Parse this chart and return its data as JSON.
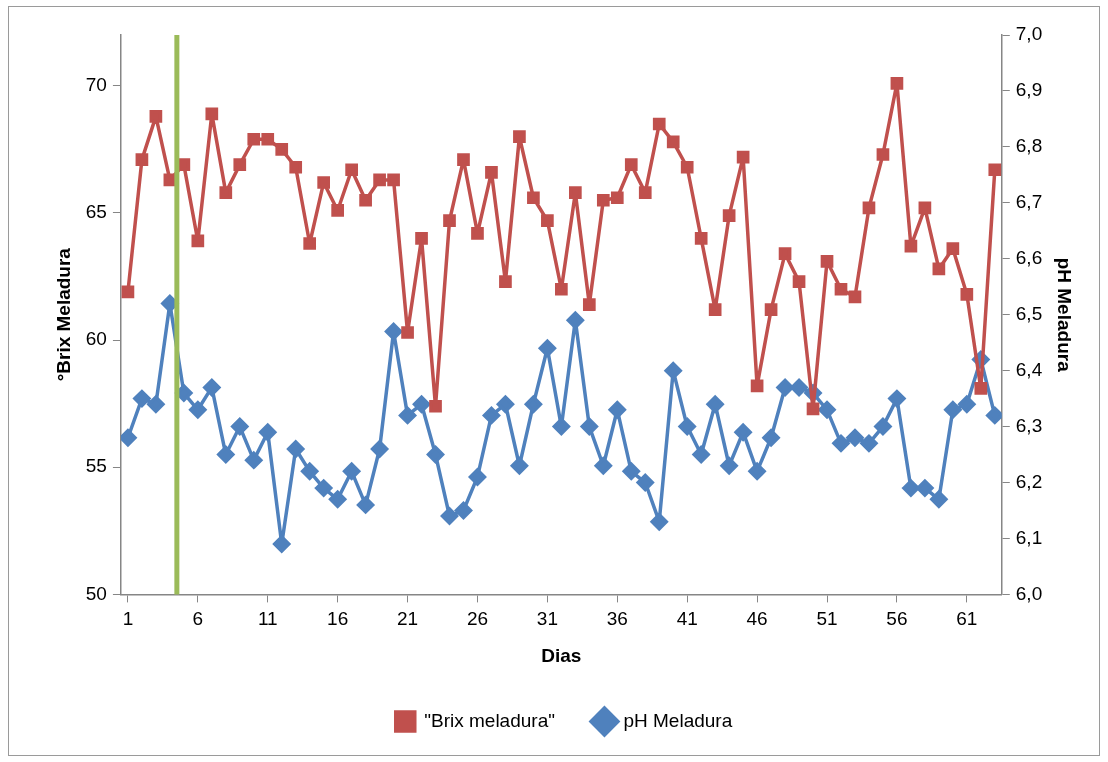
{
  "chart_data": {
    "type": "line",
    "xlabel": "Dias",
    "ylabel": "°Brix Meladura",
    "y2label": "pH Meladura",
    "x": [
      1,
      2,
      3,
      4,
      5,
      6,
      7,
      8,
      9,
      10,
      11,
      12,
      13,
      14,
      15,
      16,
      17,
      18,
      19,
      20,
      21,
      22,
      23,
      24,
      25,
      26,
      27,
      28,
      29,
      30,
      31,
      32,
      33,
      34,
      35,
      36,
      37,
      38,
      39,
      40,
      41,
      42,
      43,
      44,
      45,
      46,
      47,
      48,
      49,
      50,
      51,
      52,
      53,
      54,
      55,
      56,
      57,
      58,
      59,
      60,
      61,
      62,
      63
    ],
    "xlim": [
      0.5,
      63.5
    ],
    "xticks": [
      1,
      6,
      11,
      16,
      21,
      26,
      31,
      36,
      41,
      46,
      51,
      56,
      61
    ],
    "ylim": [
      50,
      72
    ],
    "yticks": [
      50,
      55,
      60,
      65,
      70
    ],
    "y2lim": [
      6,
      7
    ],
    "y2ticks": [
      {
        "value": 6,
        "label": "6,0"
      },
      {
        "value": 6.1,
        "label": "6,1"
      },
      {
        "value": 6.2,
        "label": "6,2"
      },
      {
        "value": 6.3,
        "label": "6,3"
      },
      {
        "value": 6.4,
        "label": "6,4"
      },
      {
        "value": 6.5,
        "label": "6,5"
      },
      {
        "value": 6.6,
        "label": "6,6"
      },
      {
        "value": 6.7,
        "label": "6,7"
      },
      {
        "value": 6.8,
        "label": "6,8"
      },
      {
        "value": 6.9,
        "label": "6,9"
      },
      {
        "value": 7,
        "label": "7,0"
      }
    ],
    "series": [
      {
        "name": "\"Brix meladura\"",
        "color": "#c0504d",
        "marker": "square",
        "values": [
          61.9,
          67.1,
          68.8,
          66.3,
          66.9,
          63.9,
          68.9,
          65.8,
          66.9,
          67.9,
          67.9,
          67.5,
          66.8,
          63.8,
          66.2,
          65.1,
          66.7,
          65.5,
          66.3,
          66.3,
          60.3,
          64.0,
          57.4,
          64.7,
          67.1,
          64.2,
          66.6,
          62.3,
          68.0,
          65.6,
          64.7,
          62.0,
          65.8,
          61.4,
          65.5,
          65.6,
          66.9,
          65.8,
          68.5,
          67.8,
          66.8,
          64.0,
          61.2,
          64.9,
          67.2,
          58.2,
          61.2,
          63.4,
          62.3,
          57.3,
          63.1,
          62.0,
          61.7,
          65.2,
          67.3,
          70.1,
          63.7,
          65.2,
          62.8,
          63.6,
          61.8,
          58.1,
          66.7
        ]
      },
      {
        "name": "pH Meladura",
        "color": "#4f81bd",
        "marker": "diamond",
        "axis": "y2",
        "values": [
          6.28,
          6.35,
          6.34,
          6.52,
          6.36,
          6.33,
          6.37,
          6.25,
          6.3,
          6.24,
          6.29,
          6.09,
          6.26,
          6.22,
          6.19,
          6.17,
          6.22,
          6.16,
          6.26,
          6.47,
          6.32,
          6.34,
          6.25,
          6.14,
          6.15,
          6.21,
          6.32,
          6.34,
          6.23,
          6.34,
          6.44,
          6.3,
          6.49,
          6.3,
          6.23,
          6.33,
          6.22,
          6.2,
          6.13,
          6.4,
          6.3,
          6.25,
          6.34,
          6.23,
          6.29,
          6.22,
          6.28,
          6.37,
          6.37,
          6.36,
          6.33,
          6.27,
          6.28,
          6.27,
          6.3,
          6.35,
          6.19,
          6.19,
          6.17,
          6.33,
          6.34,
          6.42,
          6.32
        ]
      }
    ],
    "ref_lines": [
      {
        "axis": "x",
        "value": 4.5,
        "color": "#9bbb59"
      }
    ],
    "grid": false,
    "legend": "bottom"
  }
}
